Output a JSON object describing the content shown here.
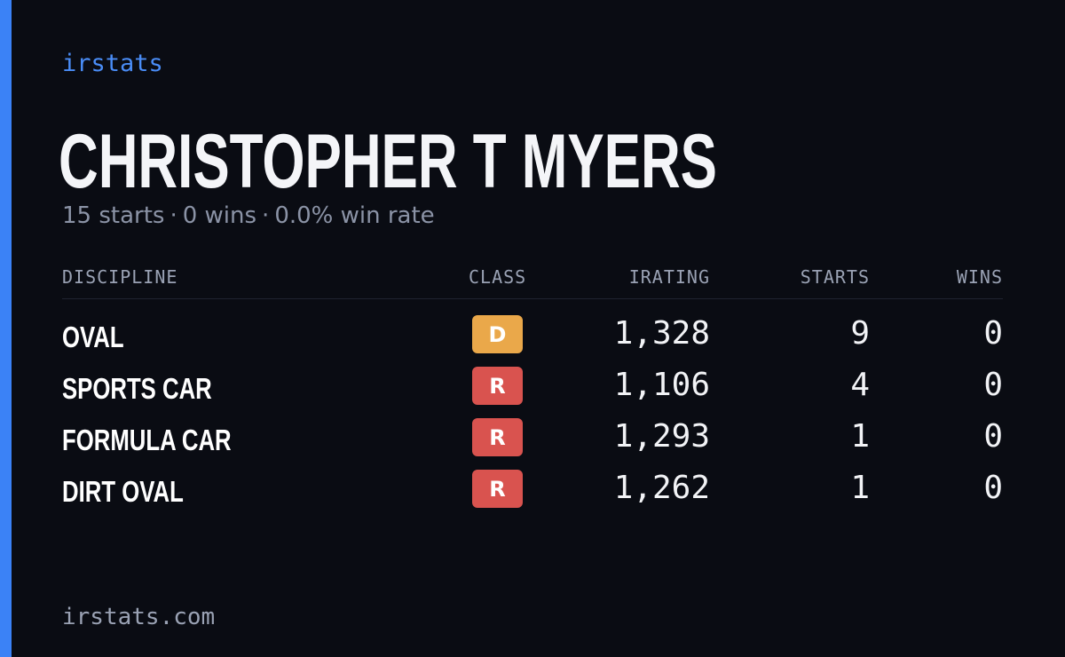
{
  "brand": "irstats",
  "driver": {
    "name": "CHRISTOPHER T MYERS"
  },
  "summary": {
    "starts": "15 starts",
    "wins": "0 wins",
    "win_rate": "0.0% win rate",
    "separator": "·"
  },
  "table": {
    "headers": {
      "discipline": "DISCIPLINE",
      "class": "CLASS",
      "irating": "IRATING",
      "starts": "STARTS",
      "wins": "WINS"
    },
    "rows": [
      {
        "discipline": "OVAL",
        "class": "D",
        "irating": "1,328",
        "starts": "9",
        "wins": "0"
      },
      {
        "discipline": "SPORTS CAR",
        "class": "R",
        "irating": "1,106",
        "starts": "4",
        "wins": "0"
      },
      {
        "discipline": "FORMULA CAR",
        "class": "R",
        "irating": "1,293",
        "starts": "1",
        "wins": "0"
      },
      {
        "discipline": "DIRT OVAL",
        "class": "R",
        "irating": "1,262",
        "starts": "1",
        "wins": "0"
      }
    ]
  },
  "colors": {
    "accent": "#3b82f6",
    "background": "#0a0c13",
    "class_d": "#eaa84a",
    "class_r": "#d9534f"
  },
  "footer": "irstats.com"
}
